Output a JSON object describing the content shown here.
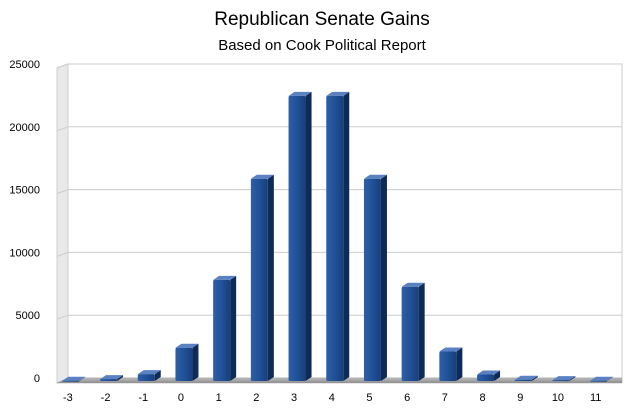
{
  "chart_data": {
    "type": "bar",
    "title": "Republican Senate Gains",
    "subtitle": "Based on Cook Political Report",
    "xlabel": "",
    "ylabel": "",
    "categories": [
      "-3",
      "-2",
      "-1",
      "0",
      "1",
      "2",
      "3",
      "4",
      "5",
      "6",
      "7",
      "8",
      "9",
      "10",
      "11"
    ],
    "values": [
      20,
      150,
      550,
      2650,
      8050,
      16100,
      22700,
      22700,
      16100,
      7500,
      2350,
      520,
      100,
      70,
      20
    ],
    "yticks": [
      "0",
      "5000",
      "10000",
      "15000",
      "20000",
      "25000"
    ],
    "ylim": [
      0,
      25000
    ],
    "grid": true,
    "legend": "none",
    "bar_color": "#1f4f95",
    "bar_side_color": "#0e2a56",
    "bar_top_color": "#5a82c2"
  }
}
